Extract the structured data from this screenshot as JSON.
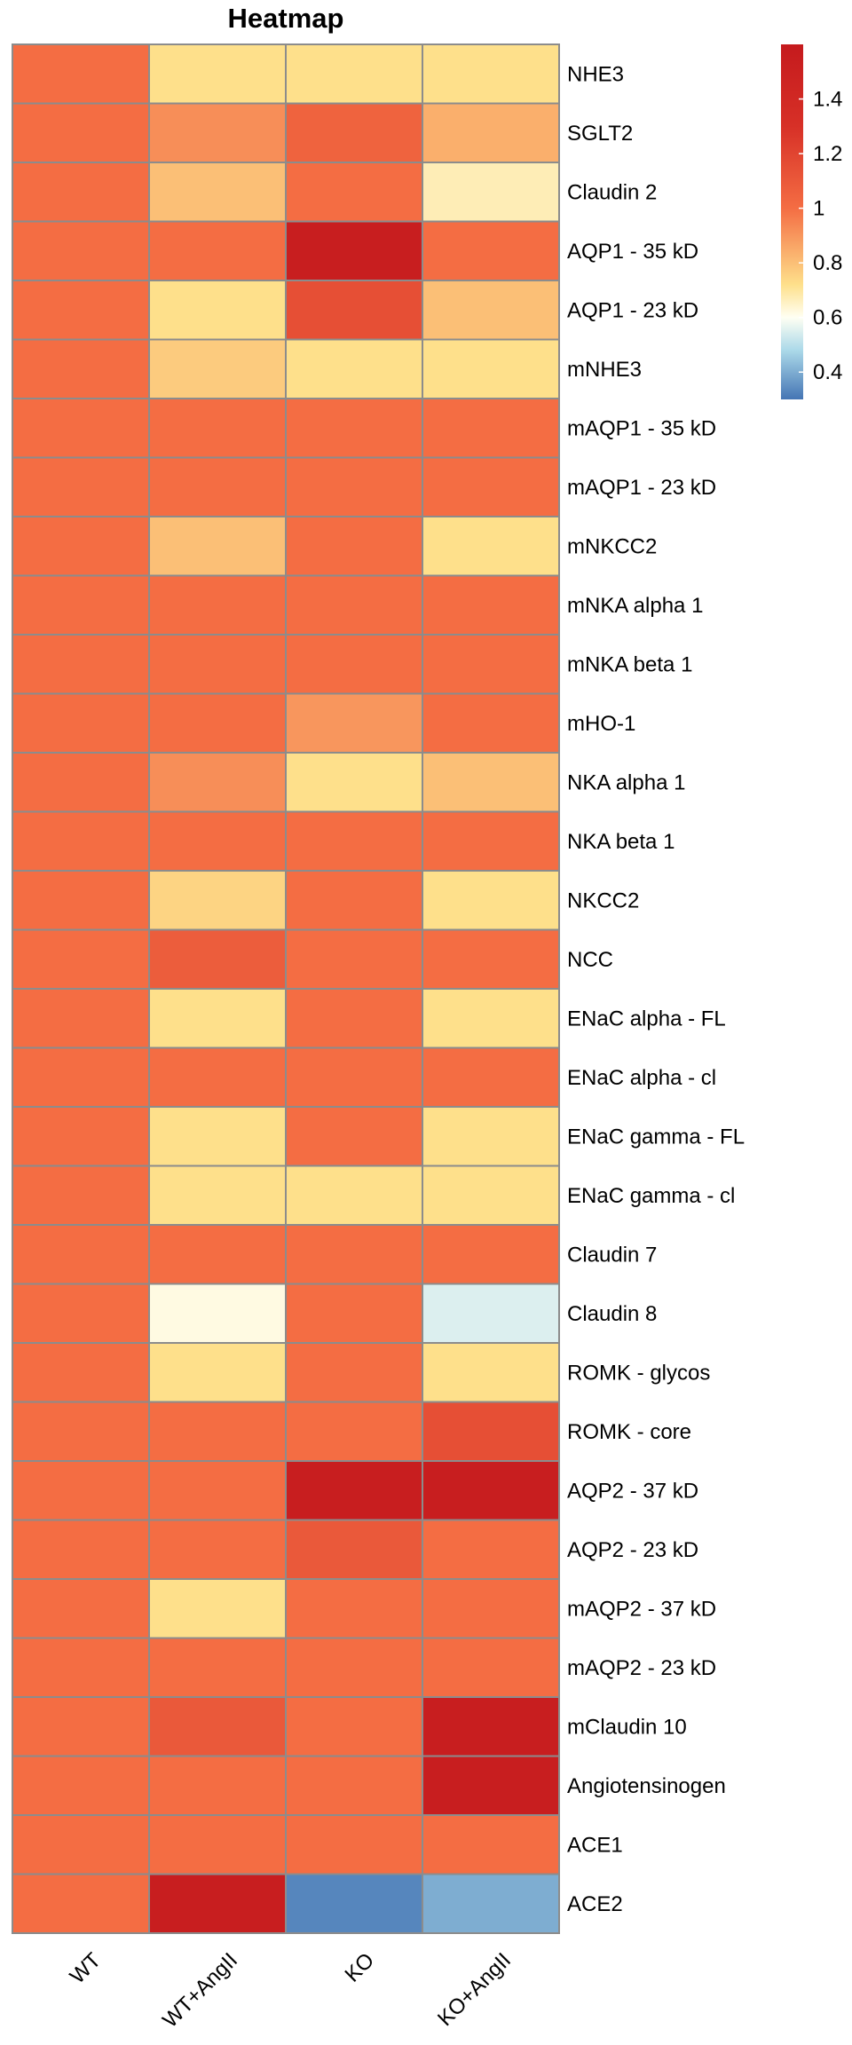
{
  "chart_data": {
    "type": "heatmap",
    "title": "Heatmap",
    "columns": [
      "WT",
      "WT+AngII",
      "KO",
      "KO+AngII"
    ],
    "rows": [
      "NHE3",
      "SGLT2",
      "Claudin 2",
      "AQP1 - 35 kD",
      "AQP1 - 23 kD",
      "mNHE3",
      "mAQP1 - 35 kD",
      "mAQP1 - 23 kD",
      "mNKCC2",
      "mNKA alpha 1",
      "mNKA beta 1",
      "mHO-1",
      "NKA alpha 1",
      "NKA beta 1",
      "NKCC2",
      "NCC",
      "ENaC alpha - FL",
      "ENaC alpha - cl",
      "ENaC gamma - FL",
      "ENaC gamma - cl",
      "Claudin 7",
      "Claudin 8",
      "ROMK - glycos",
      "ROMK - core",
      "AQP2 - 37 kD",
      "AQP2 - 23 kD",
      "mAQP2 - 37 kD",
      "mAQP2 - 23 kD",
      "mClaudin 10",
      "Angiotensinogen",
      "ACE1",
      "ACE2"
    ],
    "values": [
      [
        1.0,
        0.72,
        0.72,
        0.72
      ],
      [
        1.0,
        0.92,
        1.05,
        0.84
      ],
      [
        1.0,
        0.8,
        1.0,
        0.67
      ],
      [
        1.0,
        1.0,
        1.55,
        1.0
      ],
      [
        1.0,
        0.72,
        1.15,
        0.8
      ],
      [
        1.0,
        0.77,
        0.72,
        0.72
      ],
      [
        1.0,
        1.0,
        1.0,
        1.0
      ],
      [
        1.0,
        1.0,
        1.0,
        1.0
      ],
      [
        1.0,
        0.8,
        1.0,
        0.72
      ],
      [
        1.0,
        1.0,
        1.0,
        1.0
      ],
      [
        1.0,
        1.0,
        1.0,
        1.0
      ],
      [
        1.0,
        1.0,
        0.9,
        1.0
      ],
      [
        1.0,
        0.92,
        0.72,
        0.8
      ],
      [
        1.0,
        1.0,
        1.0,
        1.0
      ],
      [
        1.0,
        0.75,
        1.0,
        0.72
      ],
      [
        1.0,
        1.08,
        1.0,
        1.0
      ],
      [
        1.0,
        0.72,
        1.0,
        0.72
      ],
      [
        1.0,
        1.0,
        1.0,
        1.0
      ],
      [
        1.0,
        0.72,
        1.0,
        0.72
      ],
      [
        1.0,
        0.72,
        0.72,
        0.72
      ],
      [
        1.0,
        1.0,
        1.0,
        1.0
      ],
      [
        1.0,
        0.62,
        1.0,
        0.55
      ],
      [
        1.0,
        0.72,
        1.0,
        0.72
      ],
      [
        1.0,
        1.0,
        1.0,
        1.15
      ],
      [
        1.0,
        1.0,
        1.55,
        1.55
      ],
      [
        1.0,
        1.0,
        1.1,
        1.0
      ],
      [
        1.0,
        0.72,
        1.0,
        1.0
      ],
      [
        1.0,
        1.0,
        1.0,
        1.0
      ],
      [
        1.0,
        1.1,
        1.0,
        1.55
      ],
      [
        1.0,
        1.0,
        1.0,
        1.55
      ],
      [
        1.0,
        1.0,
        1.0,
        1.0
      ],
      [
        1.0,
        1.55,
        0.33,
        0.4
      ]
    ],
    "colorbar": {
      "range": [
        0.3,
        1.6
      ],
      "ticks": [
        0.4,
        0.6,
        0.8,
        1,
        1.2,
        1.4
      ],
      "tick_labels": [
        "0.4",
        "0.6",
        "0.8",
        "1",
        "1.2",
        "1.4"
      ],
      "colors": [
        "#4575b4",
        "#abd9e9",
        "#fffff3",
        "#fee08b",
        "#f46d43",
        "#d73027",
        "#c51a1d"
      ]
    },
    "grid_color": "#8c8c8c",
    "legend_placement": "top-right"
  }
}
